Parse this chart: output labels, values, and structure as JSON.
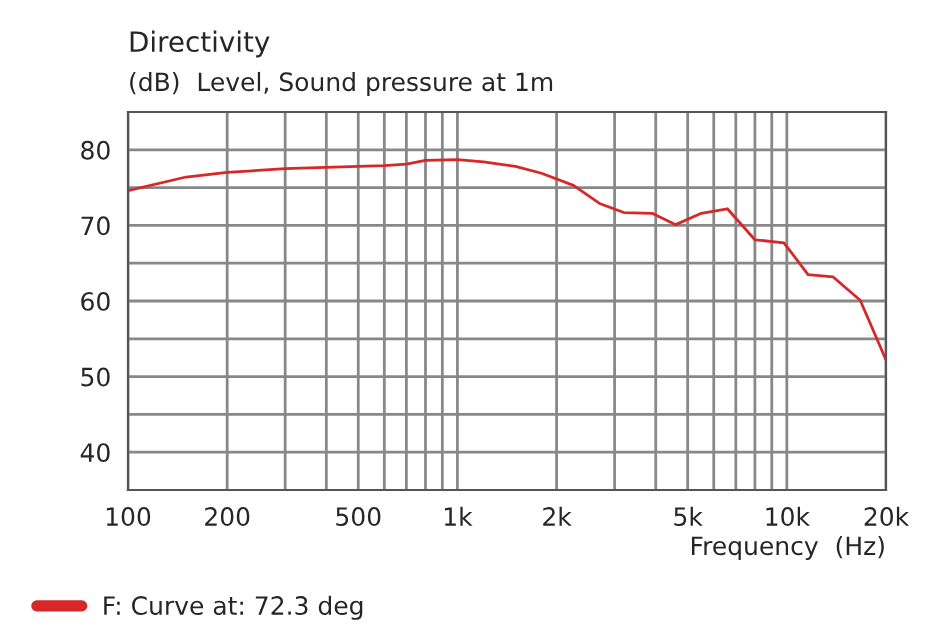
{
  "chart_data": {
    "type": "line",
    "title": "Directivity",
    "subtitle": "(dB)  Level, Sound pressure at 1m",
    "xlabel": "Frequency  (Hz)",
    "log": "x",
    "xlim": [
      100,
      20000
    ],
    "xticks": [
      100,
      200,
      {
        "value": 300,
        "label": null
      },
      {
        "value": 400,
        "label": null
      },
      500,
      {
        "value": 600,
        "label": null
      },
      {
        "value": 700,
        "label": null
      },
      {
        "value": 800,
        "label": null
      },
      {
        "value": 900,
        "label": null
      },
      {
        "value": 1000,
        "label": "1k"
      },
      {
        "value": 2000,
        "label": "2k"
      },
      {
        "value": 3000,
        "label": null
      },
      {
        "value": 4000,
        "label": null
      },
      {
        "value": 5000,
        "label": "5k"
      },
      {
        "value": 6000,
        "label": null
      },
      {
        "value": 7000,
        "label": null
      },
      {
        "value": 8000,
        "label": null
      },
      {
        "value": 9000,
        "label": null
      },
      {
        "value": 10000,
        "label": "10k"
      },
      {
        "value": 20000,
        "label": "20k"
      }
    ],
    "ylim": [
      35,
      85
    ],
    "yticks": [
      40,
      {
        "value": 45,
        "label": null
      },
      50,
      {
        "value": 55,
        "label": null
      },
      60,
      {
        "value": 65,
        "label": null
      },
      70,
      {
        "value": 75,
        "label": null
      },
      80
    ],
    "grid": true,
    "legend": "bottom",
    "line_style": "solid",
    "series": [
      {
        "name": "F: Curve at: 72.3 deg",
        "color": "#d62828",
        "x": [
          100,
          150,
          200,
          300,
          500,
          600,
          700,
          800,
          1000,
          1200,
          1500,
          1800,
          2250,
          2700,
          3200,
          3900,
          4600,
          5500,
          6600,
          8000,
          9800,
          11600,
          13800,
          16700,
          20000
        ],
        "values": [
          74.6,
          76.4,
          77.0,
          77.5,
          77.8,
          77.9,
          78.1,
          78.6,
          78.7,
          78.4,
          77.8,
          76.9,
          75.3,
          72.9,
          71.7,
          71.6,
          70.1,
          71.6,
          72.2,
          68.1,
          67.7,
          63.5,
          63.2,
          60.1,
          52.2
        ]
      }
    ]
  }
}
